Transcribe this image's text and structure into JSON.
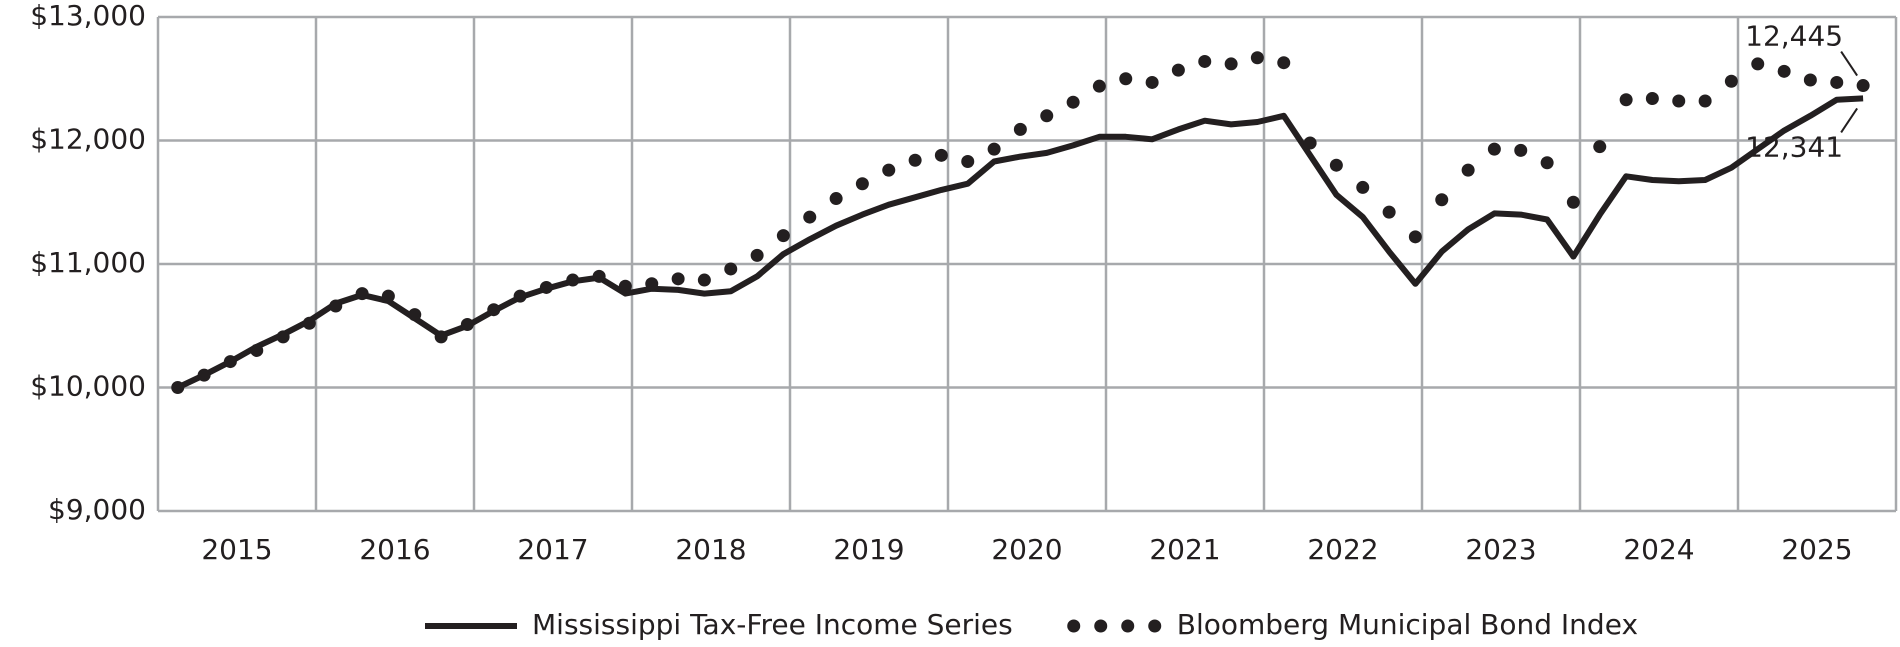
{
  "chart_data": {
    "type": "line",
    "x": [
      2015.125,
      2015.292,
      2015.458,
      2015.625,
      2015.792,
      2015.958,
      2016.125,
      2016.292,
      2016.458,
      2016.625,
      2016.792,
      2016.958,
      2017.125,
      2017.292,
      2017.458,
      2017.625,
      2017.792,
      2017.958,
      2018.125,
      2018.292,
      2018.458,
      2018.625,
      2018.792,
      2018.958,
      2019.125,
      2019.292,
      2019.458,
      2019.625,
      2019.792,
      2019.958,
      2020.125,
      2020.292,
      2020.458,
      2020.625,
      2020.792,
      2020.958,
      2021.125,
      2021.292,
      2021.458,
      2021.625,
      2021.792,
      2021.958,
      2022.125,
      2022.292,
      2022.458,
      2022.625,
      2022.792,
      2022.958,
      2023.125,
      2023.292,
      2023.458,
      2023.625,
      2023.792,
      2023.958,
      2024.125,
      2024.292,
      2024.458,
      2024.625,
      2024.792,
      2024.958,
      2025.125,
      2025.292,
      2025.458,
      2025.625,
      2025.792
    ],
    "series": [
      {
        "name": "Mississippi Tax-Free Income Series",
        "color": "#231f20",
        "style": "solid",
        "end_label": "12,341",
        "values": [
          10000,
          10100,
          10210,
          10330,
          10430,
          10540,
          10680,
          10750,
          10700,
          10560,
          10420,
          10500,
          10620,
          10730,
          10800,
          10860,
          10890,
          10760,
          10800,
          10790,
          10760,
          10780,
          10900,
          11080,
          11200,
          11310,
          11400,
          11480,
          11540,
          11600,
          11650,
          11830,
          11870,
          11900,
          11960,
          12030,
          12030,
          12010,
          12090,
          12160,
          12130,
          12150,
          12200,
          11880,
          11560,
          11380,
          11100,
          10840,
          11100,
          11280,
          11410,
          11400,
          11360,
          11060,
          11400,
          11710,
          11680,
          11670,
          11680,
          11780,
          11930,
          12080,
          12200,
          12330,
          12341
        ]
      },
      {
        "name": "Bloomberg Municipal Bond Index",
        "color": "#231f20",
        "style": "dots",
        "end_label": "12,445",
        "values": [
          10000,
          10100,
          10210,
          10300,
          10410,
          10520,
          10660,
          10760,
          10740,
          10590,
          10410,
          10510,
          10630,
          10740,
          10810,
          10870,
          10900,
          10820,
          10840,
          10880,
          10870,
          10960,
          11070,
          11230,
          11380,
          11530,
          11650,
          11760,
          11840,
          11880,
          11830,
          11930,
          12090,
          12200,
          12310,
          12440,
          12500,
          12470,
          12570,
          12640,
          12620,
          12670,
          12630,
          11980,
          11800,
          11620,
          11420,
          11220,
          11520,
          11760,
          11930,
          11920,
          11820,
          11500,
          11950,
          12330,
          12340,
          12320,
          12320,
          12480,
          12620,
          12560,
          12490,
          12470,
          12445
        ]
      }
    ],
    "xlim": [
      2015,
      2026
    ],
    "xgrid": [
      2015,
      2016,
      2017,
      2018,
      2019,
      2020,
      2021,
      2022,
      2023,
      2024,
      2025,
      2026
    ],
    "xticks": [
      {
        "value": 2015.5,
        "label": "2015"
      },
      {
        "value": 2016.5,
        "label": "2016"
      },
      {
        "value": 2017.5,
        "label": "2017"
      },
      {
        "value": 2018.5,
        "label": "2018"
      },
      {
        "value": 2019.5,
        "label": "2019"
      },
      {
        "value": 2020.5,
        "label": "2020"
      },
      {
        "value": 2021.5,
        "label": "2021"
      },
      {
        "value": 2022.5,
        "label": "2022"
      },
      {
        "value": 2023.5,
        "label": "2023"
      },
      {
        "value": 2024.5,
        "label": "2024"
      },
      {
        "value": 2025.5,
        "label": "2025"
      }
    ],
    "ylim": [
      9000,
      13000
    ],
    "yticks": [
      {
        "value": 9000,
        "label": "$9,000"
      },
      {
        "value": 10000,
        "label": "$10,000"
      },
      {
        "value": 11000,
        "label": "$11,000"
      },
      {
        "value": 12000,
        "label": "$12,000"
      },
      {
        "value": 13000,
        "label": "$13,000"
      }
    ],
    "grid": true,
    "legend": "bottom"
  }
}
